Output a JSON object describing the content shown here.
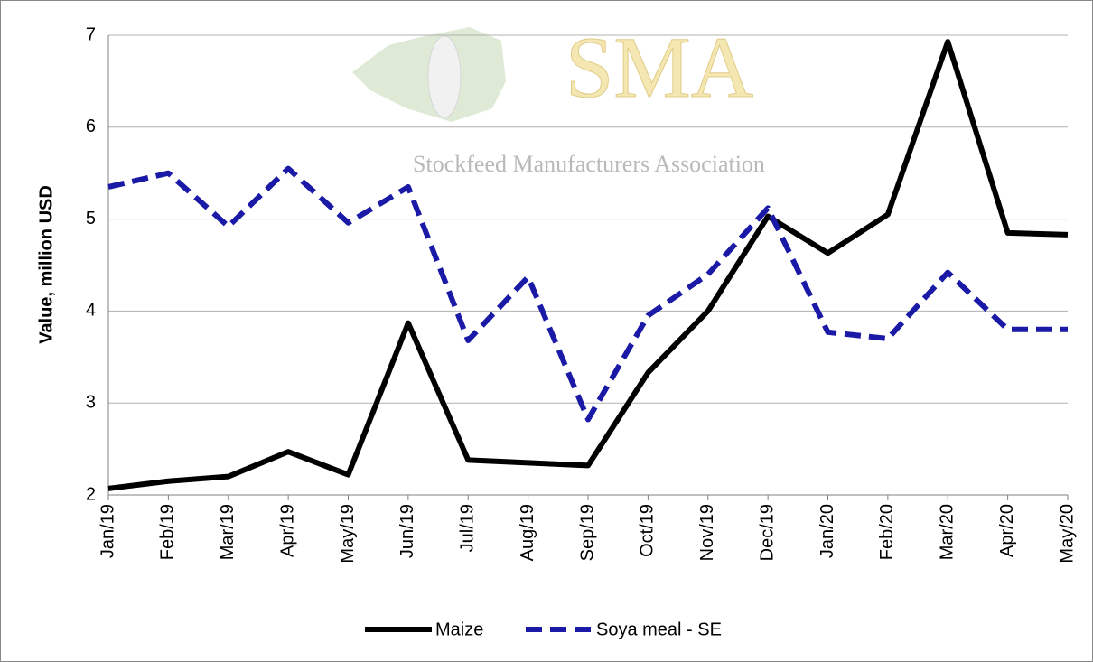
{
  "chart_data": {
    "type": "line",
    "watermark": {
      "title": "SMA",
      "subtitle": "Stockfeed Manufacturers Association"
    },
    "y_label": "Value, million USD",
    "categories": [
      "Jan/19",
      "Feb/19",
      "Mar/19",
      "Apr/19",
      "May/19",
      "Jun/19",
      "Jul/19",
      "Aug/19",
      "Sep/19",
      "Oct/19",
      "Nov/19",
      "Dec/19",
      "Jan/20",
      "Feb/20",
      "Mar/20",
      "Apr/20",
      "May/20"
    ],
    "series": [
      {
        "name": "Maize",
        "color": "#000000",
        "dash": "solid",
        "values": [
          2.07,
          2.15,
          2.2,
          2.47,
          2.22,
          3.87,
          2.38,
          2.35,
          2.32,
          3.33,
          4.0,
          5.03,
          4.63,
          5.05,
          6.93,
          4.85,
          4.83
        ]
      },
      {
        "name": "Soya meal - SE",
        "color": "#1a1aa6",
        "dash": "dashed",
        "values": [
          5.35,
          5.5,
          4.92,
          5.55,
          4.96,
          5.35,
          3.68,
          4.37,
          2.82,
          3.95,
          4.4,
          5.12,
          3.77,
          3.7,
          4.42,
          3.8,
          3.8
        ]
      }
    ],
    "ylim": [
      2,
      7
    ],
    "yticks": [
      2,
      3,
      4,
      5,
      6,
      7
    ],
    "grid": true,
    "legend": "bottom"
  }
}
